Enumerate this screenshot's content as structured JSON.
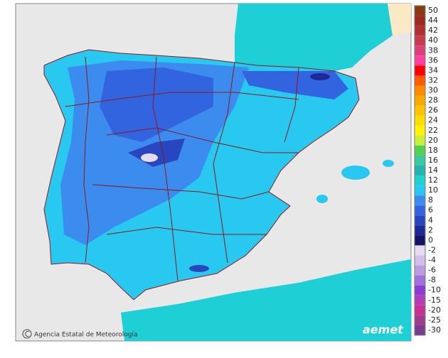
{
  "legend": {
    "items": [
      {
        "label": "50",
        "color": "#8a3a12"
      },
      {
        "label": "44",
        "color": "#9e2a26"
      },
      {
        "label": "42",
        "color": "#b03030"
      },
      {
        "label": "40",
        "color": "#c43c4e"
      },
      {
        "label": "38",
        "color": "#dc4078"
      },
      {
        "label": "36",
        "color": "#ff40a0"
      },
      {
        "label": "34",
        "color": "#ff0000"
      },
      {
        "label": "32",
        "color": "#ff5a00"
      },
      {
        "label": "30",
        "color": "#ff8c00"
      },
      {
        "label": "28",
        "color": "#ffa800"
      },
      {
        "label": "26",
        "color": "#ffc400"
      },
      {
        "label": "24",
        "color": "#ffdc00"
      },
      {
        "label": "22",
        "color": "#fff200"
      },
      {
        "label": "20",
        "color": "#c8f03c"
      },
      {
        "label": "18",
        "color": "#50d250"
      },
      {
        "label": "16",
        "color": "#3cc8a0"
      },
      {
        "label": "14",
        "color": "#28b4aa"
      },
      {
        "label": "12",
        "color": "#1ed2d2"
      },
      {
        "label": "10",
        "color": "#28c8f0"
      },
      {
        "label": "8",
        "color": "#3c8cf0"
      },
      {
        "label": "6",
        "color": "#3264e0"
      },
      {
        "label": "4",
        "color": "#2846c0"
      },
      {
        "label": "2",
        "color": "#1e2896"
      },
      {
        "label": "0",
        "color": "#141464"
      },
      {
        "label": "-2",
        "color": "#e6dcf0"
      },
      {
        "label": "-4",
        "color": "#d2c0e8"
      },
      {
        "label": "-6",
        "color": "#be9be0"
      },
      {
        "label": "-8",
        "color": "#a070dc"
      },
      {
        "label": "-10",
        "color": "#8c3cd2"
      },
      {
        "label": "-15",
        "color": "#b43cb4"
      },
      {
        "label": "-20",
        "color": "#c83296"
      },
      {
        "label": "-25",
        "color": "#a03c8c"
      },
      {
        "label": "-30",
        "color": "#783c8c"
      }
    ]
  },
  "footer": {
    "agency": "Agencia Estatal de Meteorología",
    "logo": "aemet"
  }
}
